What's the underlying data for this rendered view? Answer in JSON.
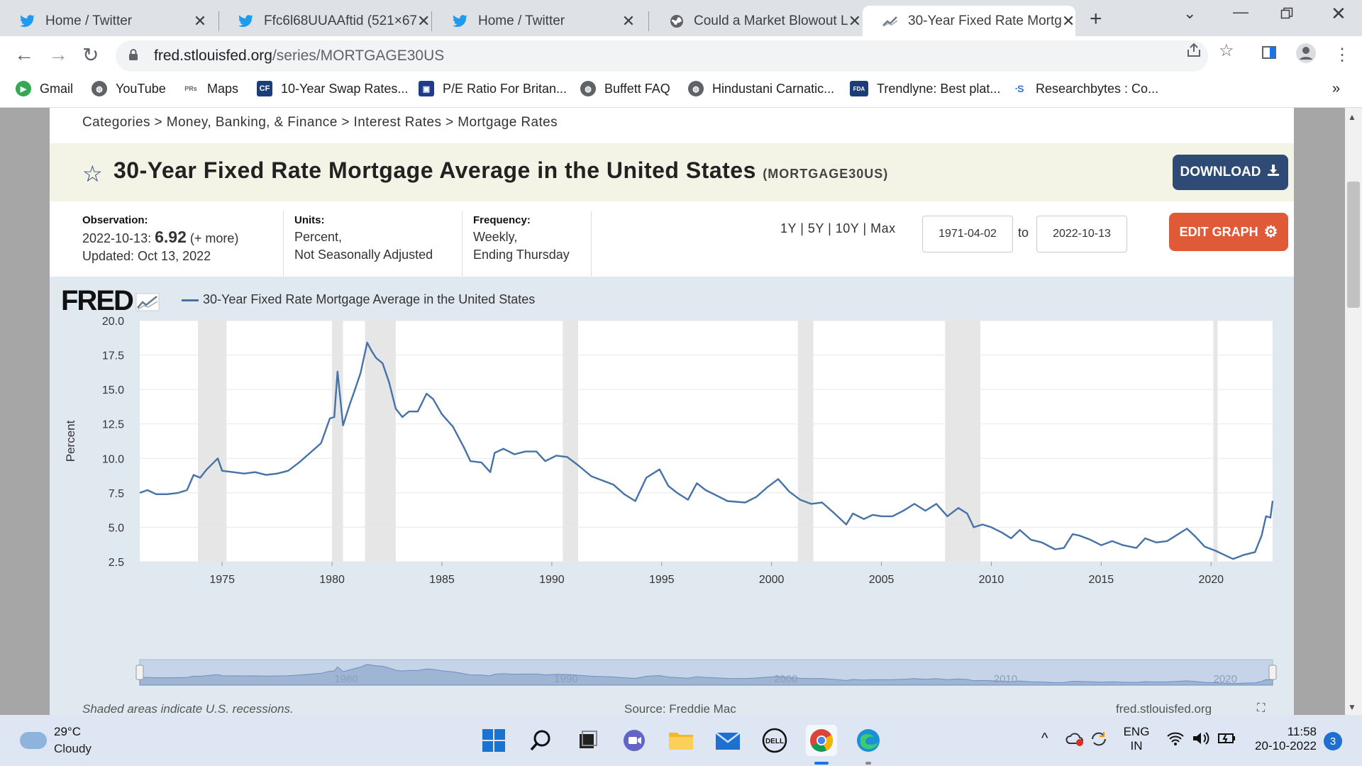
{
  "browser": {
    "tabs": [
      {
        "title": "Home / Twitter",
        "icon": "twitter-icon"
      },
      {
        "title": "Ffc6l68UUAAftid (521×67",
        "icon": "twitter-icon"
      },
      {
        "title": "Home / Twitter",
        "icon": "twitter-icon"
      },
      {
        "title": "Could a Market Blowout L",
        "icon": "globe-icon"
      },
      {
        "title": "30-Year Fixed Rate Mortg",
        "icon": "fred-chart-icon"
      }
    ],
    "url_domain": "fred.stlouisfed.org",
    "url_path": "/series/MORTGAGE30US",
    "bookmarks": [
      {
        "label": "Gmail",
        "icon": "play-icon"
      },
      {
        "label": "YouTube",
        "icon": "globe-icon"
      },
      {
        "label": "Maps",
        "icon": "prs-icon",
        "icon_text": "PRs"
      },
      {
        "label": "10-Year Swap Rates...",
        "icon": "cf-icon",
        "icon_text": "CF"
      },
      {
        "label": "P/E Ratio For Britan...",
        "icon": "screen-icon"
      },
      {
        "label": "Buffett FAQ",
        "icon": "globe-icon"
      },
      {
        "label": "Hindustani Carnatic...",
        "icon": "globe-icon"
      },
      {
        "label": "Trendlyne: Best plat...",
        "icon": "fda-icon",
        "icon_text": "FDA"
      },
      {
        "label": "Researchbytes : Co...",
        "icon": "rb-icon"
      }
    ],
    "bookmarks_more": "»"
  },
  "page": {
    "breadcrumb": "Categories > Money, Banking, & Finance > Interest Rates > Mortgage Rates",
    "title": "30-Year Fixed Rate Mortgage Average in the United States",
    "series_id": "(MORTGAGE30US)",
    "download_label": "DOWNLOAD",
    "observation": {
      "head": "Observation:",
      "date": "2022-10-13:",
      "value": "6.92",
      "more": "(+ more)",
      "updated": "Updated: Oct 13, 2022"
    },
    "units": {
      "head": "Units:",
      "line1": "Percent,",
      "line2": "Not Seasonally Adjusted"
    },
    "frequency": {
      "head": "Frequency:",
      "line1": "Weekly,",
      "line2": "Ending Thursday"
    },
    "range_links": [
      "1Y",
      "5Y",
      "10Y",
      "Max"
    ],
    "start_date": "1971-04-02",
    "to_label": "to",
    "end_date": "2022-10-13",
    "edit_label": "EDIT GRAPH",
    "fred_logo": "FRED",
    "recession_note": "Shaded areas indicate U.S. recessions.",
    "source_note": "Source: Freddie Mac",
    "site_note": "fred.stlouisfed.org"
  },
  "chart_data": {
    "type": "line",
    "title": "",
    "legend": [
      "30-Year Fixed Rate Mortgage Average in the United States"
    ],
    "xlabel": "",
    "ylabel": "Percent",
    "ylim": [
      2.5,
      20.0
    ],
    "xlim": [
      1971.25,
      2022.8
    ],
    "yticks": [
      "2.5",
      "5.0",
      "7.5",
      "10.0",
      "12.5",
      "15.0",
      "17.5",
      "20.0"
    ],
    "xticks": [
      "1975",
      "1980",
      "1985",
      "1990",
      "1995",
      "2000",
      "2005",
      "2010",
      "2015",
      "2020"
    ],
    "navigator_labels": [
      "1980",
      "1990",
      "2000",
      "2010",
      "2020"
    ],
    "grid": true,
    "line_color": "#4572a7",
    "recessions": [
      [
        1973.9,
        1975.2
      ],
      [
        1980.0,
        1980.5
      ],
      [
        1981.5,
        1982.9
      ],
      [
        1990.5,
        1991.2
      ],
      [
        2001.2,
        2001.9
      ],
      [
        2007.9,
        2009.5
      ],
      [
        2020.1,
        2020.3
      ]
    ],
    "series": [
      {
        "name": "30-Year Fixed Rate Mortgage Average in the United States",
        "x": [
          1971.25,
          1971.6,
          1972.0,
          1972.5,
          1973.0,
          1973.4,
          1973.7,
          1974.0,
          1974.3,
          1974.8,
          1975.0,
          1975.5,
          1976.0,
          1976.5,
          1977.0,
          1977.5,
          1978.0,
          1978.5,
          1979.0,
          1979.5,
          1979.9,
          1980.1,
          1980.25,
          1980.5,
          1980.8,
          1981.0,
          1981.3,
          1981.6,
          1981.8,
          1982.0,
          1982.3,
          1982.6,
          1982.9,
          1983.2,
          1983.5,
          1983.9,
          1984.3,
          1984.6,
          1985.0,
          1985.5,
          1986.0,
          1986.3,
          1986.8,
          1987.2,
          1987.4,
          1987.8,
          1988.3,
          1988.8,
          1989.3,
          1989.7,
          1990.2,
          1990.7,
          1991.2,
          1991.8,
          1992.3,
          1992.8,
          1993.3,
          1993.8,
          1994.3,
          1994.9,
          1995.3,
          1995.7,
          1996.2,
          1996.6,
          1997.0,
          1997.5,
          1998.0,
          1998.8,
          1999.3,
          1999.8,
          2000.3,
          2000.8,
          2001.3,
          2001.8,
          2002.3,
          2002.8,
          2003.4,
          2003.7,
          2004.2,
          2004.6,
          2005.0,
          2005.5,
          2006.0,
          2006.5,
          2007.0,
          2007.5,
          2008.0,
          2008.5,
          2008.9,
          2009.2,
          2009.6,
          2010.0,
          2010.5,
          2010.9,
          2011.3,
          2011.8,
          2012.3,
          2012.9,
          2013.3,
          2013.7,
          2014.0,
          2014.5,
          2015.0,
          2015.5,
          2016.0,
          2016.6,
          2017.0,
          2017.5,
          2018.0,
          2018.9,
          2019.3,
          2019.7,
          2020.2,
          2020.6,
          2021.0,
          2021.5,
          2022.0,
          2022.3,
          2022.5,
          2022.7,
          2022.8
        ],
        "y": [
          7.5,
          7.7,
          7.4,
          7.4,
          7.5,
          7.7,
          8.8,
          8.6,
          9.2,
          10.0,
          9.1,
          9.0,
          8.9,
          9.0,
          8.8,
          8.9,
          9.1,
          9.7,
          10.4,
          11.1,
          12.9,
          13.0,
          16.3,
          12.4,
          13.9,
          14.8,
          16.2,
          18.4,
          17.8,
          17.3,
          16.9,
          15.5,
          13.6,
          13.0,
          13.4,
          13.4,
          14.7,
          14.3,
          13.2,
          12.3,
          10.8,
          9.8,
          9.7,
          9.0,
          10.4,
          10.7,
          10.3,
          10.5,
          10.5,
          9.8,
          10.2,
          10.1,
          9.5,
          8.7,
          8.4,
          8.1,
          7.4,
          6.9,
          8.6,
          9.2,
          8.0,
          7.5,
          7.0,
          8.2,
          7.7,
          7.3,
          6.9,
          6.8,
          7.2,
          7.9,
          8.5,
          7.6,
          7.0,
          6.7,
          6.8,
          6.1,
          5.2,
          6.0,
          5.6,
          5.9,
          5.8,
          5.8,
          6.2,
          6.7,
          6.2,
          6.7,
          5.8,
          6.4,
          6.0,
          5.0,
          5.2,
          5.0,
          4.6,
          4.2,
          4.8,
          4.1,
          3.9,
          3.4,
          3.5,
          4.5,
          4.4,
          4.1,
          3.7,
          4.0,
          3.7,
          3.5,
          4.2,
          3.9,
          4.0,
          4.9,
          4.3,
          3.6,
          3.3,
          3.0,
          2.7,
          3.0,
          3.2,
          4.4,
          5.8,
          5.7,
          6.92
        ]
      }
    ]
  },
  "taskbar": {
    "temp": "29°C",
    "condition": "Cloudy",
    "lang1": "ENG",
    "lang2": "IN",
    "time": "11:58",
    "date": "20-10-2022",
    "notifications": "3"
  }
}
